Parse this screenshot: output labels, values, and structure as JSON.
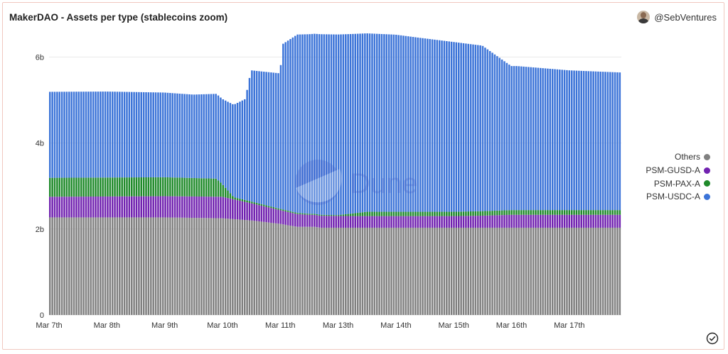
{
  "header": {
    "title": "MakerDAO - Assets per type (stablecoins zoom)",
    "author": "@SebVentures"
  },
  "watermark": "Dune",
  "colors": {
    "Others": "#808080",
    "PSM-GUSD-A": "#7122b0",
    "PSM-PAX-A": "#1f8a2a",
    "PSM-USDC-A": "#3c74d8",
    "grid": "#e8e8e8"
  },
  "chart_data": {
    "type": "bar",
    "stacked": true,
    "title": "MakerDAO - Assets per type (stablecoins zoom)",
    "xlabel": "",
    "ylabel": "",
    "ylim": [
      0,
      6.6
    ],
    "y_unit": "b",
    "y_ticks": [
      0,
      2,
      4,
      6
    ],
    "y_tick_labels": [
      "0",
      "2b",
      "4b",
      "6b"
    ],
    "x_ticks": [
      "Mar 7th",
      "Mar 8th",
      "Mar 9th",
      "Mar 10th",
      "Mar 11th",
      "Mar 13th",
      "Mar 14th",
      "Mar 15th",
      "Mar 16th",
      "Mar 17th"
    ],
    "x_tick_positions": [
      7,
      8,
      9,
      10,
      11,
      12,
      13,
      14,
      15,
      16
    ],
    "x_range": [
      7.0,
      16.9
    ],
    "legend_position": "right",
    "legend": [
      "Others",
      "PSM-GUSD-A",
      "PSM-PAX-A",
      "PSM-USDC-A"
    ],
    "series": [
      {
        "name": "Others",
        "points": [
          [
            7.0,
            2.27
          ],
          [
            9.0,
            2.27
          ],
          [
            10.0,
            2.25
          ],
          [
            10.5,
            2.2
          ],
          [
            11.0,
            2.12
          ],
          [
            11.3,
            2.05
          ],
          [
            11.6,
            2.05
          ],
          [
            11.7,
            2.03
          ],
          [
            16.9,
            2.03
          ]
        ]
      },
      {
        "name": "PSM-GUSD-A",
        "points": [
          [
            7.0,
            0.48
          ],
          [
            10.0,
            0.5
          ],
          [
            10.5,
            0.4
          ],
          [
            11.0,
            0.32
          ],
          [
            11.5,
            0.28
          ],
          [
            12.3,
            0.27
          ],
          [
            14.0,
            0.27
          ],
          [
            14.5,
            0.28
          ],
          [
            15.0,
            0.3
          ],
          [
            16.9,
            0.3
          ]
        ]
      },
      {
        "name": "PSM-PAX-A",
        "points": [
          [
            7.0,
            0.44
          ],
          [
            9.0,
            0.44
          ],
          [
            9.9,
            0.42
          ],
          [
            10.2,
            0.05
          ],
          [
            10.5,
            0.04
          ],
          [
            11.0,
            0.03
          ],
          [
            12.0,
            0.02
          ],
          [
            12.5,
            0.1
          ],
          [
            14.0,
            0.1
          ],
          [
            15.0,
            0.11
          ],
          [
            16.9,
            0.11
          ]
        ]
      },
      {
        "name": "PSM-USDC-A",
        "points": [
          [
            7.0,
            2.0
          ],
          [
            8.0,
            2.0
          ],
          [
            9.0,
            1.97
          ],
          [
            9.5,
            1.94
          ],
          [
            10.0,
            1.98
          ],
          [
            10.2,
            2.15
          ],
          [
            10.4,
            2.35
          ],
          [
            10.5,
            3.05
          ],
          [
            11.0,
            3.15
          ],
          [
            11.05,
            3.85
          ],
          [
            11.3,
            4.15
          ],
          [
            11.7,
            4.2
          ],
          [
            12.0,
            4.2
          ],
          [
            12.5,
            4.15
          ],
          [
            13.0,
            4.12
          ],
          [
            13.4,
            4.05
          ],
          [
            14.0,
            3.95
          ],
          [
            14.5,
            3.85
          ],
          [
            15.0,
            3.35
          ],
          [
            15.1,
            3.35
          ],
          [
            16.0,
            3.25
          ],
          [
            16.9,
            3.2
          ]
        ]
      }
    ]
  }
}
